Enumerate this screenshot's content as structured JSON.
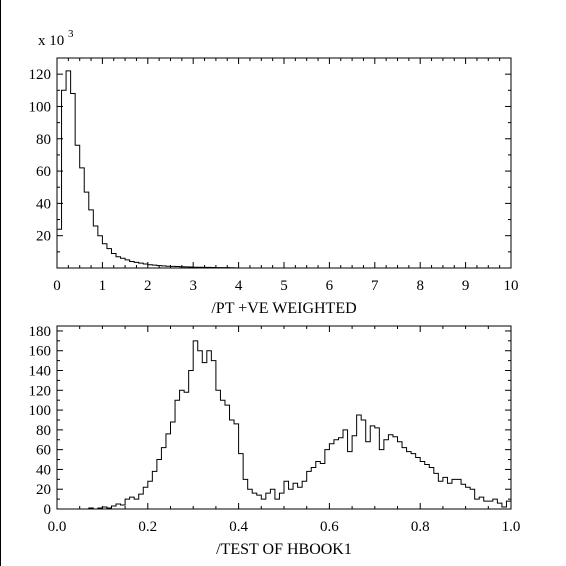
{
  "chart_data": [
    {
      "type": "histogram",
      "title": "",
      "xlabel": "/PT  +VE  WEIGHTED",
      "ylabel": "",
      "scale_label": "x 10",
      "scale_exponent": "3",
      "xlim": [
        0,
        10
      ],
      "ylim": [
        0,
        130
      ],
      "x_ticks": [
        0,
        1,
        2,
        3,
        4,
        5,
        6,
        7,
        8,
        9,
        10
      ],
      "x_tick_labels": [
        "0",
        "1",
        "2",
        "3",
        "4",
        "5",
        "6",
        "7",
        "8",
        "9",
        "10"
      ],
      "y_ticks": [
        20,
        40,
        60,
        80,
        100,
        120
      ],
      "y_tick_labels": [
        "20",
        "40",
        "60",
        "80",
        "100",
        "120"
      ],
      "bin_start": 0,
      "bin_width": 0.1,
      "values": [
        24,
        110,
        122,
        108,
        76,
        62,
        47,
        36,
        26,
        20,
        15,
        12,
        9,
        7,
        6,
        5,
        4,
        3.5,
        3,
        2.5,
        2,
        1.8,
        1.5,
        1.3,
        1.1,
        1,
        0.9,
        0.8,
        0.7,
        0.6,
        0.5,
        0.45,
        0.4,
        0.35,
        0.3,
        0.25,
        0.2,
        0.2,
        0.15,
        0.1,
        0,
        0,
        0,
        0,
        0,
        0,
        0,
        0,
        0,
        0,
        0,
        0,
        0,
        0,
        0,
        0,
        0,
        0,
        0,
        0,
        0,
        0,
        0,
        0,
        0,
        0,
        0,
        0,
        0,
        0,
        0,
        0,
        0,
        0,
        0,
        0,
        0,
        0,
        0,
        0,
        0,
        0,
        0,
        0,
        0,
        0,
        0,
        0,
        0,
        0,
        0,
        0,
        0,
        0,
        0,
        0,
        0,
        0,
        0,
        0
      ],
      "grid": false
    },
    {
      "type": "histogram",
      "title": "",
      "xlabel": "/TEST OF HBOOK1",
      "ylabel": "",
      "xlim": [
        0,
        1
      ],
      "ylim": [
        0,
        185
      ],
      "x_ticks": [
        0,
        0.2,
        0.4,
        0.6,
        0.8,
        1.0
      ],
      "x_tick_labels": [
        "0.0",
        "0.2",
        "0.4",
        "0.6",
        "0.8",
        "1.0"
      ],
      "y_ticks": [
        0,
        20,
        40,
        60,
        80,
        100,
        120,
        140,
        160,
        180
      ],
      "y_tick_labels": [
        "0",
        "20",
        "40",
        "60",
        "80",
        "100",
        "120",
        "140",
        "160",
        "180"
      ],
      "bin_start": 0,
      "bin_width": 0.01,
      "values": [
        0,
        0,
        0,
        0,
        0,
        0,
        0,
        1,
        0,
        1,
        2,
        1,
        3,
        5,
        4,
        10,
        12,
        10,
        15,
        22,
        28,
        38,
        50,
        62,
        76,
        88,
        110,
        120,
        118,
        140,
        170,
        160,
        148,
        160,
        150,
        120,
        110,
        105,
        90,
        86,
        56,
        30,
        20,
        16,
        14,
        10,
        16,
        20,
        10,
        16,
        28,
        20,
        26,
        22,
        28,
        38,
        42,
        48,
        46,
        60,
        66,
        70,
        72,
        80,
        58,
        74,
        95,
        90,
        68,
        84,
        82,
        60,
        70,
        75,
        73,
        68,
        62,
        58,
        56,
        52,
        48,
        45,
        42,
        36,
        28,
        32,
        26,
        30,
        30,
        25,
        22,
        20,
        10,
        12,
        8,
        8,
        10,
        6,
        2,
        8
      ],
      "grid": false
    }
  ]
}
